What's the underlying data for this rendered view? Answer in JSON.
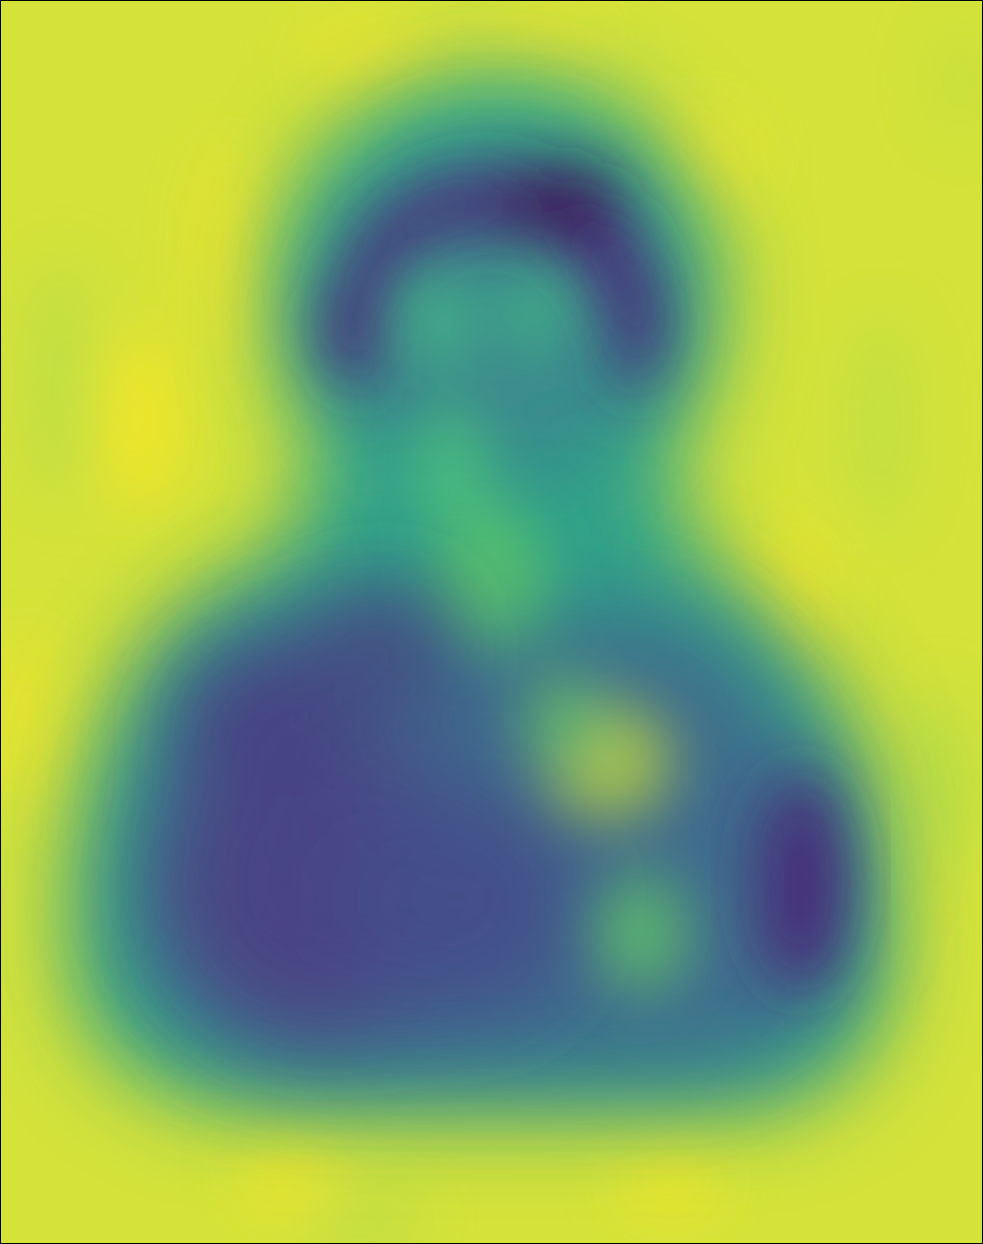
{
  "image": {
    "colormap": "viridis",
    "description_colors": {
      "background": "#d9e436",
      "background_bright": "#f2e62a",
      "figure_edge": "#2fa88a",
      "figure_mid": "#3b7f8e",
      "figure_dark": "#472f7a",
      "figure_darkest": "#3d1556",
      "highlight_green": "#5fca61",
      "highlight_yellow": "#c6e03a"
    }
  }
}
